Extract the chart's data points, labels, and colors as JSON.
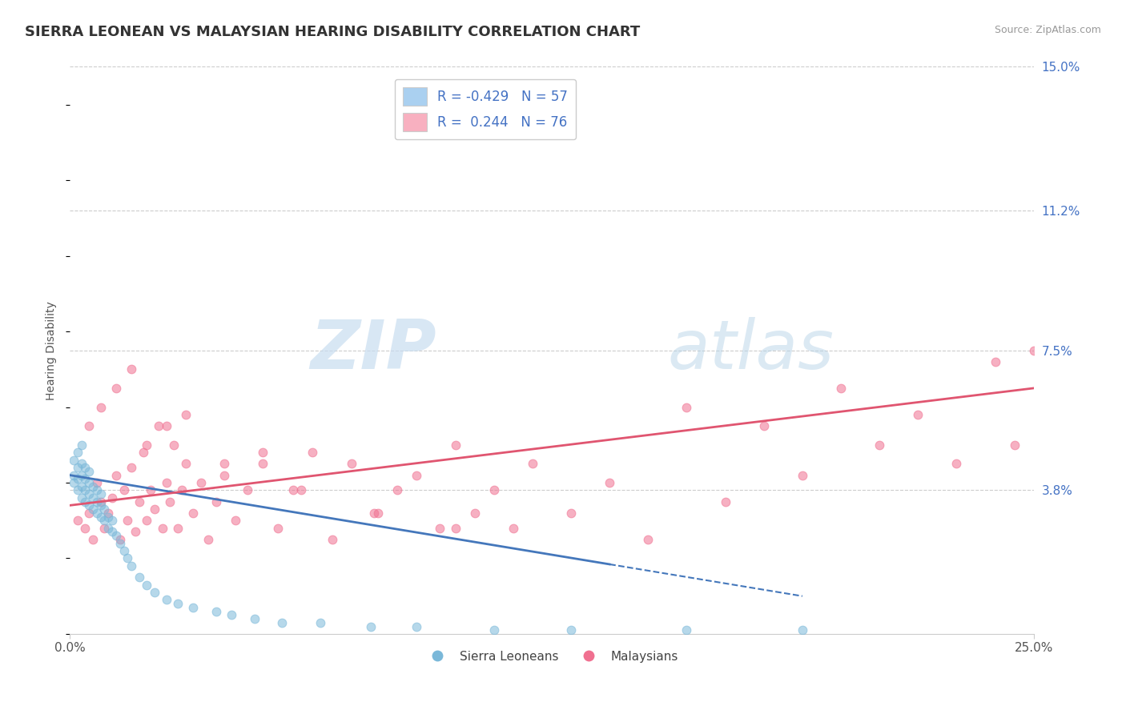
{
  "title": "SIERRA LEONEAN VS MALAYSIAN HEARING DISABILITY CORRELATION CHART",
  "source": "Source: ZipAtlas.com",
  "ylabel": "Hearing Disability",
  "xlim": [
    0.0,
    0.25
  ],
  "ylim": [
    0.0,
    0.15
  ],
  "ytick_vals": [
    0.038,
    0.075,
    0.112,
    0.15
  ],
  "ytick_labels": [
    "3.8%",
    "7.5%",
    "11.2%",
    "15.0%"
  ],
  "xtick_vals": [
    0.0,
    0.25
  ],
  "xtick_labels": [
    "0.0%",
    "25.0%"
  ],
  "sl_color": "#7ab8d9",
  "ml_color": "#f07090",
  "sl_trend_color": "#4477bb",
  "ml_trend_color": "#e05570",
  "background_color": "#ffffff",
  "title_fontsize": 13,
  "axis_label_fontsize": 10,
  "tick_fontsize": 11,
  "legend_fontsize": 12,
  "sl_legend_color": "#aad0f0",
  "ml_legend_color": "#f8b0c0",
  "sierra_x": [
    0.001,
    0.001,
    0.001,
    0.002,
    0.002,
    0.002,
    0.002,
    0.003,
    0.003,
    0.003,
    0.003,
    0.003,
    0.004,
    0.004,
    0.004,
    0.004,
    0.005,
    0.005,
    0.005,
    0.005,
    0.006,
    0.006,
    0.006,
    0.007,
    0.007,
    0.007,
    0.008,
    0.008,
    0.008,
    0.009,
    0.009,
    0.01,
    0.01,
    0.011,
    0.011,
    0.012,
    0.013,
    0.014,
    0.015,
    0.016,
    0.018,
    0.02,
    0.022,
    0.025,
    0.028,
    0.032,
    0.038,
    0.042,
    0.048,
    0.055,
    0.065,
    0.078,
    0.09,
    0.11,
    0.13,
    0.16,
    0.19
  ],
  "sierra_y": [
    0.04,
    0.042,
    0.046,
    0.038,
    0.041,
    0.044,
    0.048,
    0.036,
    0.039,
    0.042,
    0.045,
    0.05,
    0.035,
    0.038,
    0.041,
    0.044,
    0.034,
    0.037,
    0.04,
    0.043,
    0.033,
    0.036,
    0.039,
    0.032,
    0.035,
    0.038,
    0.031,
    0.034,
    0.037,
    0.03,
    0.033,
    0.028,
    0.031,
    0.027,
    0.03,
    0.026,
    0.024,
    0.022,
    0.02,
    0.018,
    0.015,
    0.013,
    0.011,
    0.009,
    0.008,
    0.007,
    0.006,
    0.005,
    0.004,
    0.003,
    0.003,
    0.002,
    0.002,
    0.001,
    0.001,
    0.001,
    0.001
  ],
  "malaysia_x": [
    0.002,
    0.004,
    0.005,
    0.006,
    0.007,
    0.008,
    0.009,
    0.01,
    0.011,
    0.012,
    0.013,
    0.014,
    0.015,
    0.016,
    0.017,
    0.018,
    0.019,
    0.02,
    0.021,
    0.022,
    0.023,
    0.024,
    0.025,
    0.026,
    0.027,
    0.028,
    0.029,
    0.03,
    0.032,
    0.034,
    0.036,
    0.038,
    0.04,
    0.043,
    0.046,
    0.05,
    0.054,
    0.058,
    0.063,
    0.068,
    0.073,
    0.079,
    0.085,
    0.09,
    0.096,
    0.1,
    0.105,
    0.11,
    0.115,
    0.12,
    0.13,
    0.14,
    0.15,
    0.16,
    0.17,
    0.18,
    0.19,
    0.2,
    0.21,
    0.22,
    0.23,
    0.24,
    0.245,
    0.25,
    0.005,
    0.008,
    0.012,
    0.016,
    0.02,
    0.025,
    0.03,
    0.04,
    0.05,
    0.06,
    0.08,
    0.1
  ],
  "malaysia_y": [
    0.03,
    0.028,
    0.032,
    0.025,
    0.04,
    0.035,
    0.028,
    0.032,
    0.036,
    0.042,
    0.025,
    0.038,
    0.03,
    0.044,
    0.027,
    0.035,
    0.048,
    0.03,
    0.038,
    0.033,
    0.055,
    0.028,
    0.04,
    0.035,
    0.05,
    0.028,
    0.038,
    0.045,
    0.032,
    0.04,
    0.025,
    0.035,
    0.042,
    0.03,
    0.038,
    0.045,
    0.028,
    0.038,
    0.048,
    0.025,
    0.045,
    0.032,
    0.038,
    0.042,
    0.028,
    0.05,
    0.032,
    0.038,
    0.028,
    0.045,
    0.032,
    0.04,
    0.025,
    0.06,
    0.035,
    0.055,
    0.042,
    0.065,
    0.05,
    0.058,
    0.045,
    0.072,
    0.05,
    0.075,
    0.055,
    0.06,
    0.065,
    0.07,
    0.05,
    0.055,
    0.058,
    0.045,
    0.048,
    0.038,
    0.032,
    0.028
  ],
  "sl_trend_start_x": 0.0,
  "sl_trend_end_x": 0.19,
  "sl_trend_start_y": 0.042,
  "sl_trend_end_y": 0.01,
  "ml_trend_start_x": 0.0,
  "ml_trend_end_x": 0.25,
  "ml_trend_start_y": 0.034,
  "ml_trend_end_y": 0.065
}
